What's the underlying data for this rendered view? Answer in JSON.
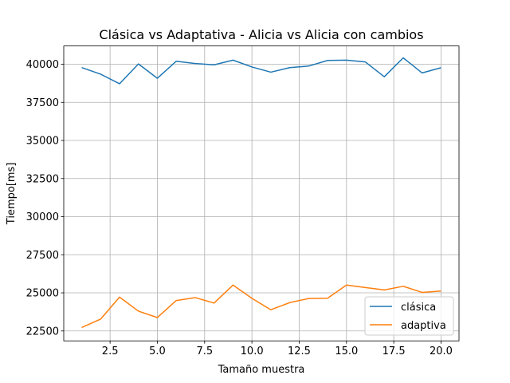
{
  "chart_data": {
    "type": "line",
    "title": "Clásica vs Adaptativa - Alicia vs Alicia con cambios",
    "xlabel": "Tamaño muestra",
    "ylabel": "Tiempo[ms]",
    "xlim": [
      0.05,
      20.95
    ],
    "ylim": [
      21850,
      41200
    ],
    "xticks": [
      2.5,
      5.0,
      7.5,
      10.0,
      12.5,
      15.0,
      17.5,
      20.0
    ],
    "xtick_labels": [
      "2.5",
      "5.0",
      "7.5",
      "10.0",
      "12.5",
      "15.0",
      "17.5",
      "20.0"
    ],
    "yticks": [
      22500,
      25000,
      27500,
      30000,
      32500,
      35000,
      37500,
      40000
    ],
    "ytick_labels": [
      "22500",
      "25000",
      "27500",
      "30000",
      "32500",
      "35000",
      "37500",
      "40000"
    ],
    "grid": true,
    "legend_position": "lower-right",
    "x": [
      1,
      2,
      3,
      4,
      5,
      6,
      7,
      8,
      9,
      10,
      11,
      12,
      13,
      14,
      15,
      16,
      17,
      18,
      19,
      20
    ],
    "series": [
      {
        "name": "clásica",
        "color": "#1f77b4",
        "values": [
          39780,
          39350,
          38720,
          40020,
          39080,
          40200,
          40050,
          39960,
          40270,
          39820,
          39480,
          39780,
          39880,
          40250,
          40270,
          40150,
          39180,
          40420,
          39430,
          39770
        ]
      },
      {
        "name": "adaptiva",
        "color": "#ff7f0e",
        "values": [
          22730,
          23280,
          24720,
          23800,
          23380,
          24500,
          24690,
          24330,
          25510,
          24640,
          23890,
          24360,
          24630,
          24650,
          25510,
          25350,
          25190,
          25430,
          25030,
          25120
        ]
      }
    ]
  }
}
